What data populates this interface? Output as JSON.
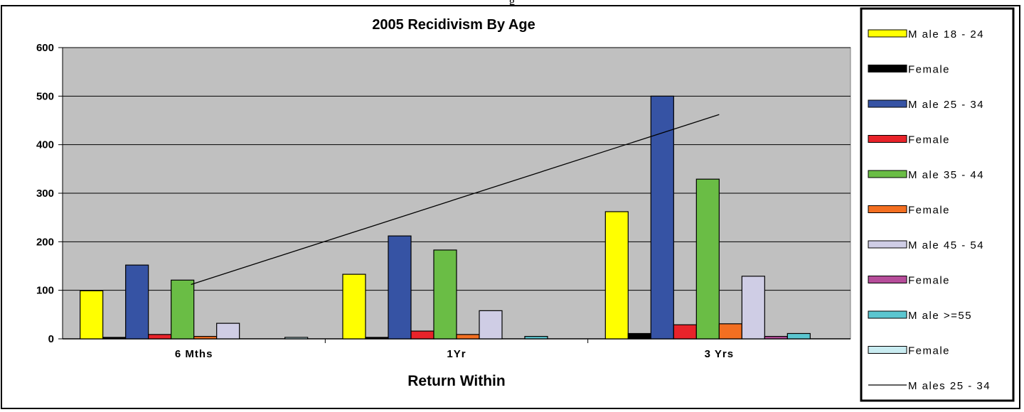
{
  "caption": "g",
  "chart_data": {
    "type": "bar",
    "title": "2005 Recidivism By Age",
    "xlabel": "Return Within",
    "ylabel": "",
    "ylim": [
      0,
      600
    ],
    "yticks": [
      0,
      100,
      200,
      300,
      400,
      500,
      600
    ],
    "categories": [
      "6 Mths",
      "1Yr",
      "3 Yrs"
    ],
    "series": [
      {
        "name": "M ale 18 - 24",
        "color": "#ffff00",
        "values": [
          99,
          133,
          262
        ]
      },
      {
        "name": "Female",
        "color": "#000000",
        "values": [
          3,
          3,
          11
        ]
      },
      {
        "name": "M ale 25 - 34",
        "color": "#3653a4",
        "values": [
          152,
          212,
          500
        ]
      },
      {
        "name": "Female",
        "color": "#e8232a",
        "values": [
          9,
          16,
          29
        ]
      },
      {
        "name": "M ale 35 - 44",
        "color": "#6abd45",
        "values": [
          121,
          183,
          329
        ]
      },
      {
        "name": "Female",
        "color": "#f36f21",
        "values": [
          5,
          9,
          31
        ]
      },
      {
        "name": "M ale 45 - 54",
        "color": "#cfcde5",
        "values": [
          32,
          58,
          129
        ]
      },
      {
        "name": "Female",
        "color": "#b64d9a",
        "values": [
          0,
          0,
          5
        ]
      },
      {
        "name": "M ale >=55",
        "color": "#5bc6d0",
        "values": [
          0,
          5,
          11
        ]
      },
      {
        "name": "Female",
        "color": "#c9ecf1",
        "values": [
          3,
          0,
          0
        ]
      }
    ],
    "trendline": {
      "name": "M ales 25 - 34",
      "color": "#000000",
      "start": 112,
      "end": 462
    },
    "plot_background": "#c0c0c0",
    "grid": true,
    "legend_position": "right"
  }
}
